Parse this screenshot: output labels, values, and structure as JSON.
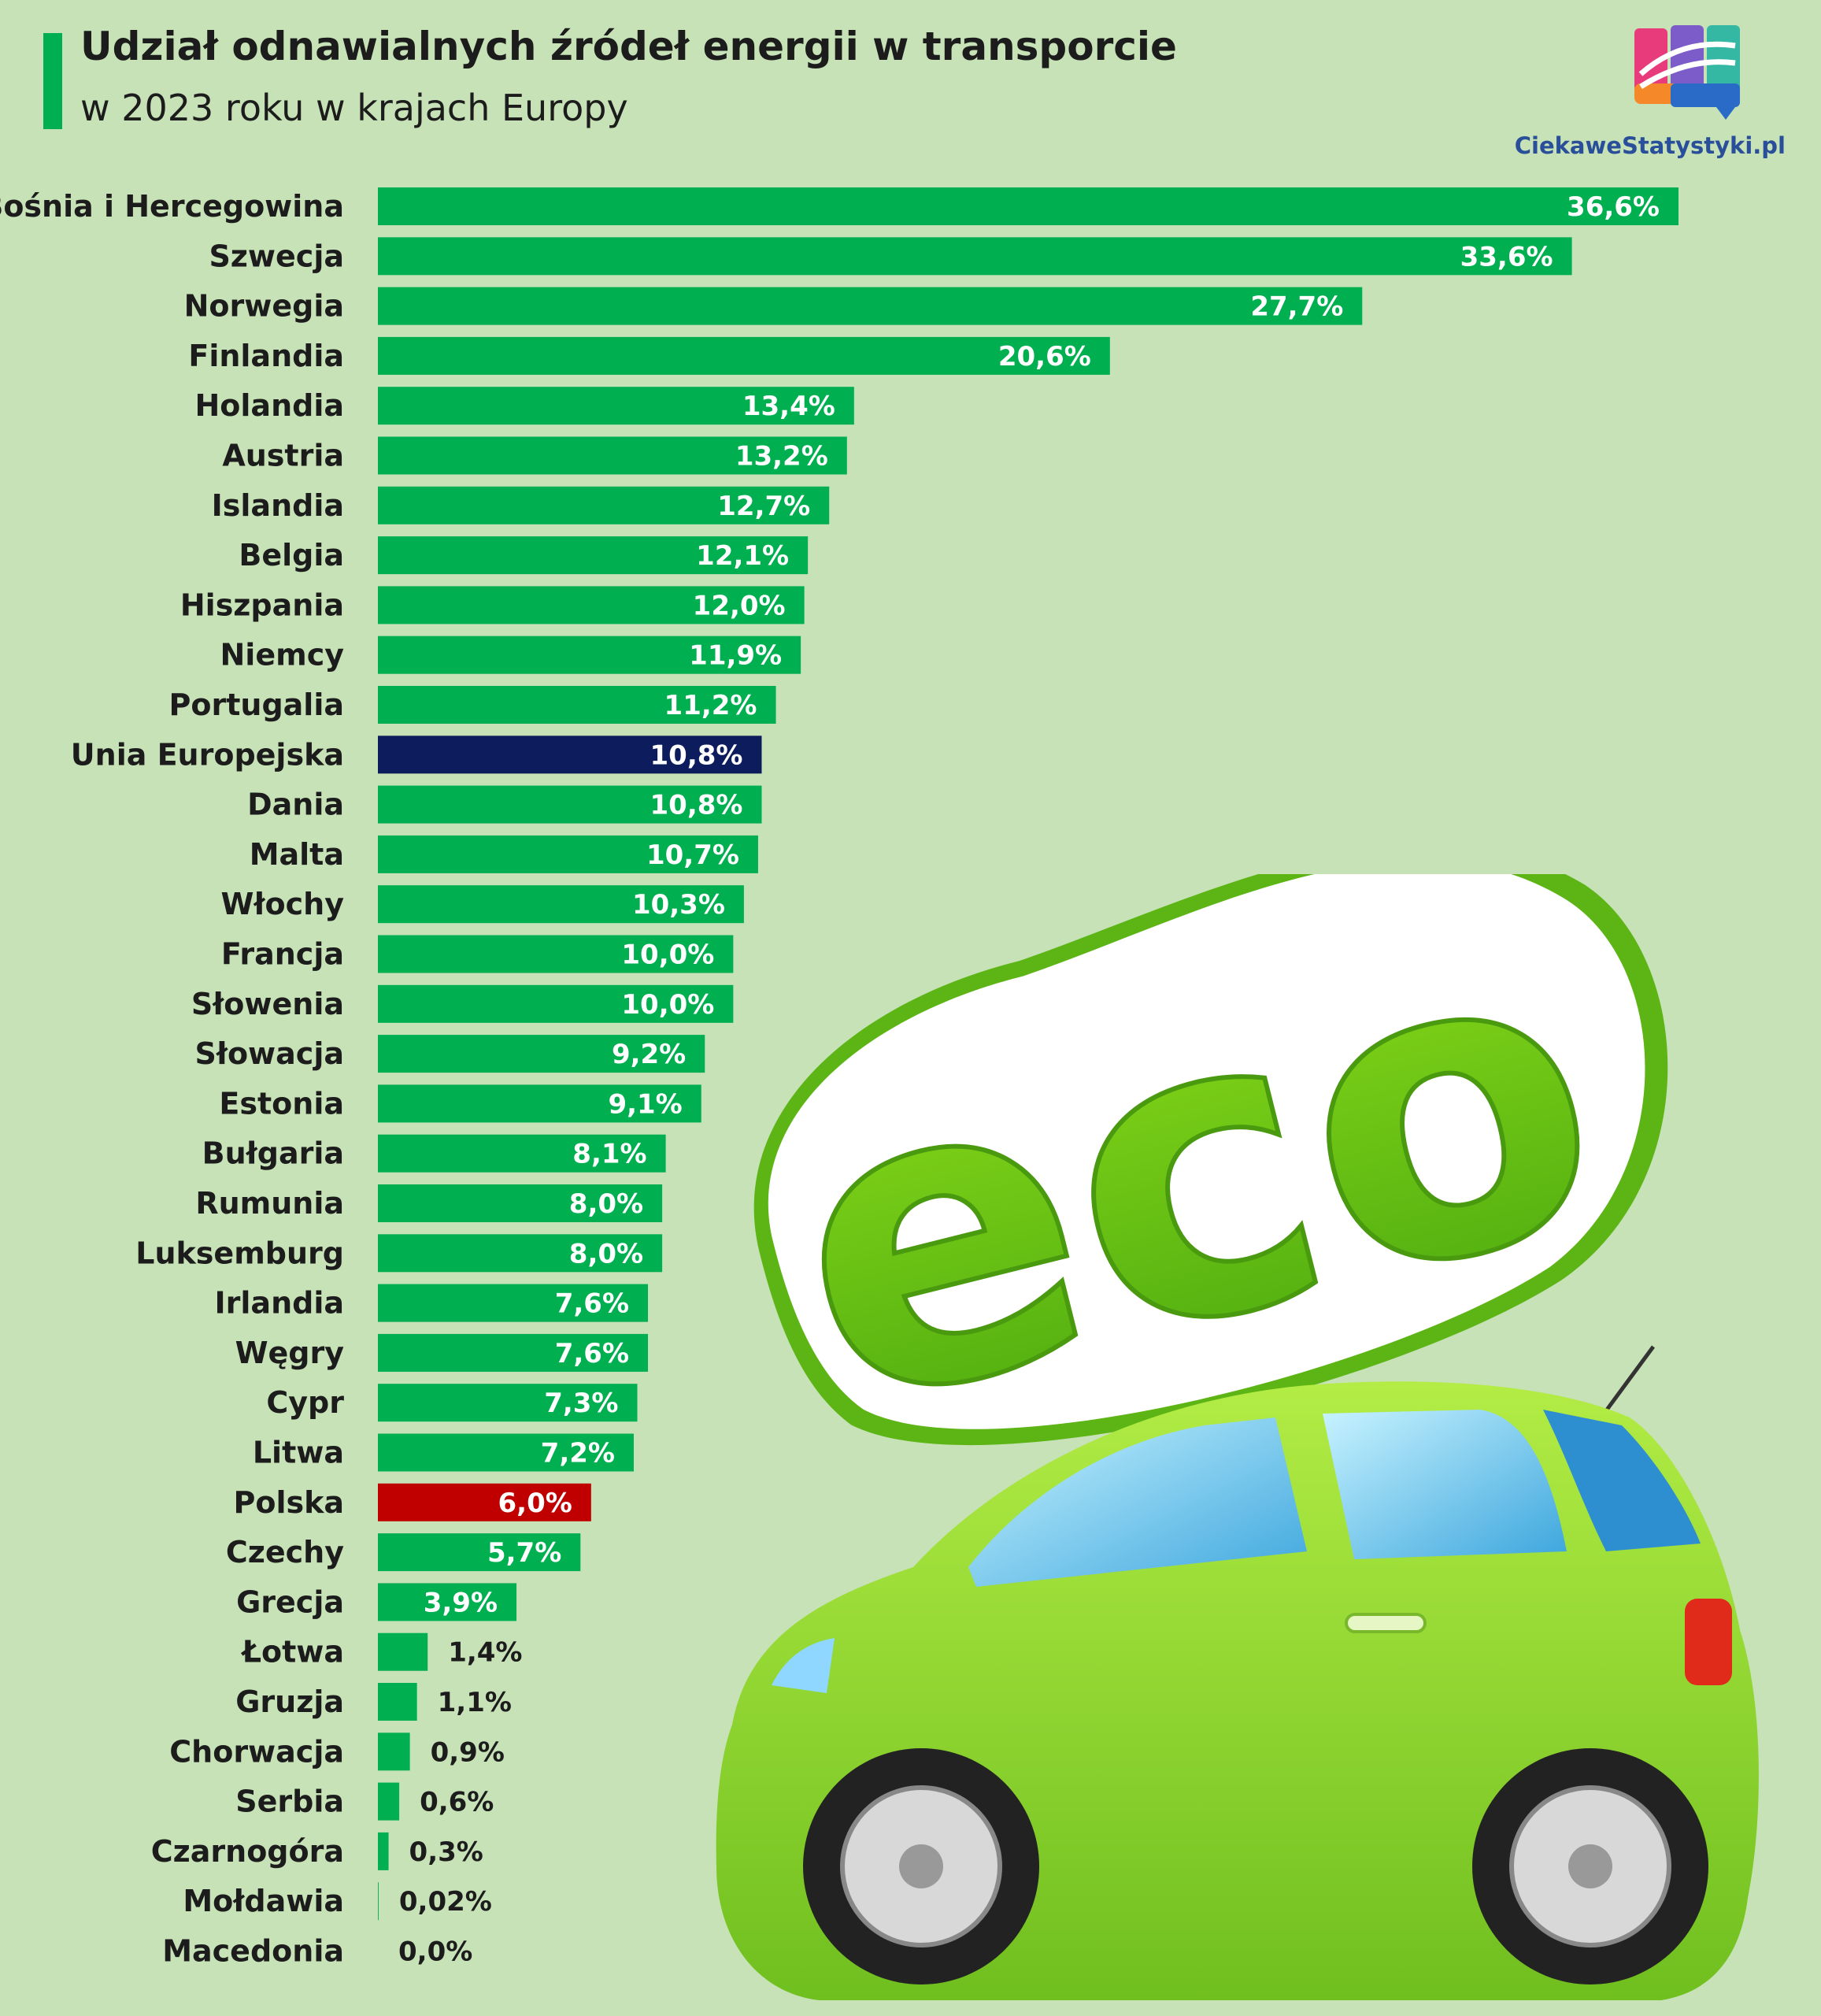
{
  "header": {
    "title": "Udział odnawialnych źródeł energii w transporcie",
    "subtitle": "w 2023 roku w krajach Europy"
  },
  "brand": {
    "name": "CiekaweStatystyki.pl"
  },
  "colors": {
    "background": "#c6e2b6",
    "bar": "#00b050",
    "eu_bar": "#0c1c5c",
    "poland_bar": "#c00000",
    "text": "#1c1c1c"
  },
  "chart_data": {
    "type": "bar",
    "orientation": "horizontal",
    "title": "Udział odnawialnych źródeł energii w transporcie",
    "subtitle": "w 2023 roku w krajach Europy",
    "unit": "%",
    "categories": [
      "Bośnia i Hercegowina",
      "Szwecja",
      "Norwegia",
      "Finlandia",
      "Holandia",
      "Austria",
      "Islandia",
      "Belgia",
      "Hiszpania",
      "Niemcy",
      "Portugalia",
      "Unia Europejska",
      "Dania",
      "Malta",
      "Włochy",
      "Francja",
      "Słowenia",
      "Słowacja",
      "Estonia",
      "Bułgaria",
      "Rumunia",
      "Luksemburg",
      "Irlandia",
      "Węgry",
      "Cypr",
      "Litwa",
      "Polska",
      "Czechy",
      "Grecja",
      "Łotwa",
      "Gruzja",
      "Chorwacja",
      "Serbia",
      "Czarnogóra",
      "Mołdawia",
      "Macedonia"
    ],
    "values": [
      36.6,
      33.6,
      27.7,
      20.6,
      13.4,
      13.2,
      12.7,
      12.1,
      12.0,
      11.9,
      11.2,
      10.8,
      10.8,
      10.7,
      10.3,
      10.0,
      10.0,
      9.2,
      9.1,
      8.1,
      8.0,
      8.0,
      7.6,
      7.6,
      7.3,
      7.2,
      6.0,
      5.7,
      3.9,
      1.4,
      1.1,
      0.9,
      0.6,
      0.3,
      0.02,
      0.0
    ],
    "labels": [
      "36,6%",
      "33,6%",
      "27,7%",
      "20,6%",
      "13,4%",
      "13,2%",
      "12,7%",
      "12,1%",
      "12,0%",
      "11,9%",
      "11,2%",
      "10,8%",
      "10,8%",
      "10,7%",
      "10,3%",
      "10,0%",
      "10,0%",
      "9,2%",
      "9,1%",
      "8,1%",
      "8,0%",
      "8,0%",
      "7,6%",
      "7,6%",
      "7,3%",
      "7,2%",
      "6,0%",
      "5,7%",
      "3,9%",
      "1,4%",
      "1,1%",
      "0,9%",
      "0,6%",
      "0,3%",
      "0,02%",
      "0,0%"
    ],
    "highlight": {
      "Unia Europejska": "eu",
      "Polska": "poland"
    },
    "xlim": [
      0,
      36.6
    ],
    "axis": false,
    "grid": false
  }
}
